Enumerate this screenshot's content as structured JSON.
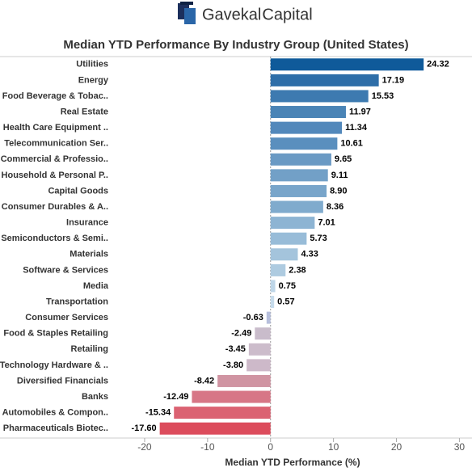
{
  "header": {
    "logo": [
      "Gavekal",
      "Capital"
    ]
  },
  "chart_data": {
    "type": "hbar",
    "title": "Median YTD Performance By Industry Group (United States)",
    "xlabel": "Median YTD Performance (%)",
    "categories": [
      "Utilities",
      "Energy",
      "Food Beverage & Tobac..",
      "Real Estate",
      "Health Care Equipment ..",
      "Telecommunication Ser..",
      "Commercial & Professio..",
      "Household & Personal P..",
      "Capital Goods",
      "Consumer Durables & A..",
      "Insurance",
      "Semiconductors & Semi..",
      "Materials",
      "Software & Services",
      "Media",
      "Transportation",
      "Consumer Services",
      "Food & Staples Retailing",
      "Retailing",
      "Technology Hardware & ..",
      "Diversified Financials",
      "Banks",
      "Automobiles & Compon..",
      "Pharmaceuticals Biotec.."
    ],
    "values": [
      24.32,
      17.19,
      15.53,
      11.97,
      11.34,
      10.61,
      9.65,
      9.11,
      8.9,
      8.36,
      7.01,
      5.73,
      4.33,
      2.38,
      0.75,
      0.57,
      -0.63,
      -2.49,
      -3.45,
      -3.8,
      -8.42,
      -12.49,
      -15.34,
      -17.6
    ],
    "value_labels": [
      "24.32",
      "17.19",
      "15.53",
      "11.97",
      "11.34",
      "10.61",
      "9.65",
      "9.11",
      "8.90",
      "8.36",
      "7.01",
      "5.73",
      "4.33",
      "2.38",
      "0.75",
      "0.57",
      "-0.63",
      "-2.49",
      "-3.45",
      "-3.80",
      "-8.42",
      "-12.49",
      "-15.34",
      "-17.60"
    ],
    "colors": [
      "#0f5a9a",
      "#2e6ea8",
      "#3d7ab0",
      "#4a84b6",
      "#5288bb",
      "#5a8fbe",
      "#6a9ac4",
      "#72a0c7",
      "#78a5ca",
      "#80abcd",
      "#8db4d3",
      "#98bcd8",
      "#a4c4dc",
      "#aecbe0",
      "#bed6e8",
      "#c6dbeb",
      "#b7bfdc",
      "#c9bccb",
      "#ccbccb",
      "#cdb9c9",
      "#d094a2",
      "#d77686",
      "#db6272",
      "#dc4c5c"
    ],
    "xlim": [
      -25,
      32
    ],
    "xticks": [
      -20,
      -10,
      0,
      10,
      20,
      30
    ]
  }
}
